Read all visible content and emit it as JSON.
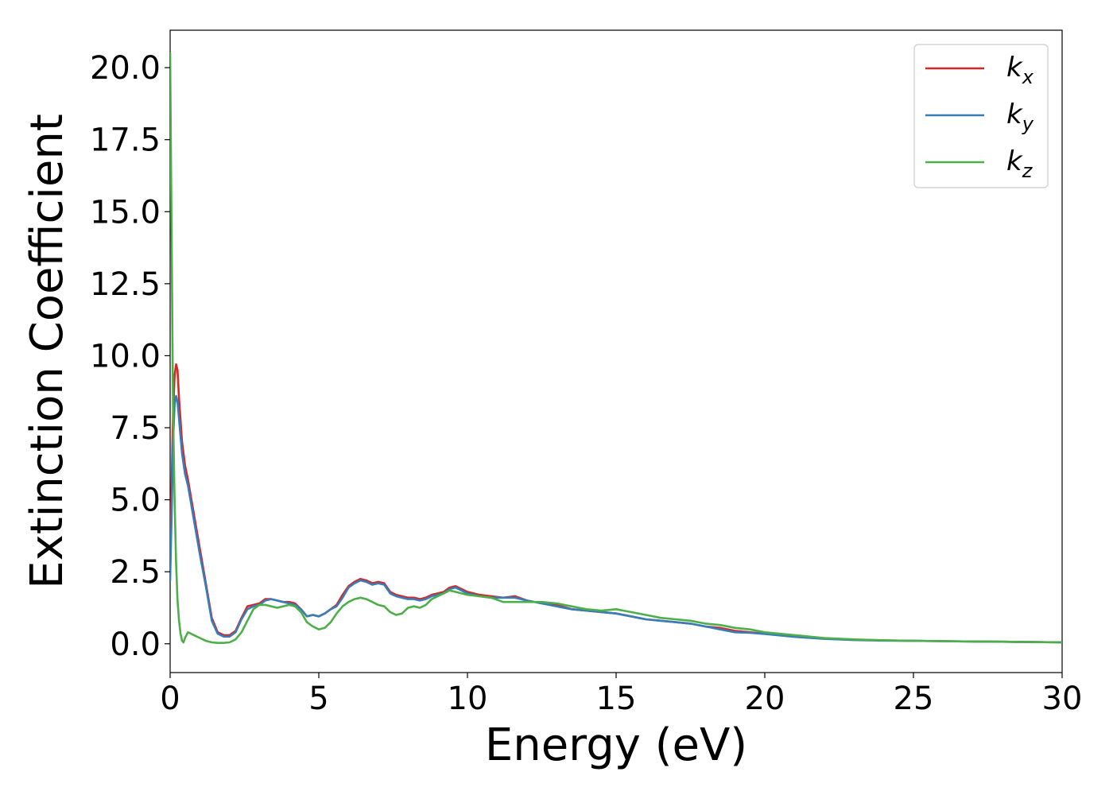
{
  "chart_data": {
    "type": "line",
    "xlabel": "Energy (eV)",
    "ylabel": "Extinction Coefficient",
    "xlim": [
      0,
      30
    ],
    "ylim": [
      -1.0,
      21.3
    ],
    "xticks": [
      0,
      5,
      10,
      15,
      20,
      25,
      30
    ],
    "xtick_labels": [
      "0",
      "5",
      "10",
      "15",
      "20",
      "25",
      "30"
    ],
    "yticks": [
      0.0,
      2.5,
      5.0,
      7.5,
      10.0,
      12.5,
      15.0,
      17.5,
      20.0
    ],
    "ytick_labels": [
      "0.0",
      "2.5",
      "5.0",
      "7.5",
      "10.0",
      "12.5",
      "15.0",
      "17.5",
      "20.0"
    ],
    "grid": false,
    "legend_position": "top-right",
    "series": [
      {
        "name": "k",
        "subscript": "x",
        "color": "#d62728",
        "x": [
          0,
          0.05,
          0.1,
          0.15,
          0.2,
          0.25,
          0.3,
          0.4,
          0.5,
          0.6,
          0.8,
          1.0,
          1.2,
          1.4,
          1.6,
          1.8,
          2.0,
          2.2,
          2.4,
          2.6,
          2.8,
          3.0,
          3.2,
          3.4,
          3.6,
          3.8,
          4.0,
          4.2,
          4.4,
          4.6,
          4.8,
          5.0,
          5.2,
          5.4,
          5.6,
          5.8,
          6.0,
          6.2,
          6.4,
          6.6,
          6.8,
          7.0,
          7.2,
          7.4,
          7.6,
          7.8,
          8.0,
          8.2,
          8.4,
          8.6,
          8.8,
          9.0,
          9.2,
          9.4,
          9.6,
          9.8,
          10.0,
          10.4,
          10.8,
          11.2,
          11.6,
          12.0,
          12.5,
          13.0,
          13.5,
          14.0,
          14.5,
          15.0,
          15.5,
          16.0,
          16.5,
          17.0,
          17.5,
          18.0,
          18.5,
          19.0,
          19.5,
          20.0,
          21.0,
          22.0,
          23.0,
          24.0,
          25.0,
          26.0,
          27.0,
          28.0,
          29.0,
          30.0
        ],
        "values": [
          2.5,
          5.5,
          8.0,
          9.3,
          9.7,
          9.5,
          8.5,
          7.0,
          6.2,
          5.7,
          4.5,
          3.3,
          2.1,
          0.9,
          0.4,
          0.3,
          0.3,
          0.45,
          0.9,
          1.3,
          1.35,
          1.4,
          1.55,
          1.55,
          1.5,
          1.45,
          1.45,
          1.4,
          1.2,
          0.95,
          1.0,
          0.95,
          1.05,
          1.2,
          1.35,
          1.7,
          2.0,
          2.15,
          2.25,
          2.2,
          2.1,
          2.15,
          2.1,
          1.8,
          1.7,
          1.65,
          1.6,
          1.6,
          1.55,
          1.6,
          1.7,
          1.75,
          1.8,
          1.95,
          2.0,
          1.9,
          1.8,
          1.7,
          1.65,
          1.6,
          1.65,
          1.5,
          1.4,
          1.35,
          1.2,
          1.15,
          1.1,
          1.05,
          0.95,
          0.85,
          0.8,
          0.75,
          0.7,
          0.6,
          0.55,
          0.45,
          0.4,
          0.35,
          0.25,
          0.18,
          0.14,
          0.12,
          0.1,
          0.09,
          0.08,
          0.07,
          0.06,
          0.05
        ]
      },
      {
        "name": "k",
        "subscript": "y",
        "color": "#377eb8",
        "x": [
          0,
          0.05,
          0.1,
          0.15,
          0.2,
          0.25,
          0.3,
          0.4,
          0.5,
          0.6,
          0.8,
          1.0,
          1.2,
          1.4,
          1.6,
          1.8,
          2.0,
          2.2,
          2.4,
          2.6,
          2.8,
          3.0,
          3.2,
          3.4,
          3.6,
          3.8,
          4.0,
          4.2,
          4.4,
          4.6,
          4.8,
          5.0,
          5.2,
          5.4,
          5.6,
          5.8,
          6.0,
          6.2,
          6.4,
          6.6,
          6.8,
          7.0,
          7.2,
          7.4,
          7.6,
          7.8,
          8.0,
          8.2,
          8.4,
          8.6,
          8.8,
          9.0,
          9.2,
          9.4,
          9.6,
          9.8,
          10.0,
          10.4,
          10.8,
          11.2,
          11.6,
          12.0,
          12.5,
          13.0,
          13.5,
          14.0,
          14.5,
          15.0,
          15.5,
          16.0,
          16.5,
          17.0,
          17.5,
          18.0,
          18.5,
          19.0,
          19.5,
          20.0,
          21.0,
          22.0,
          23.0,
          24.0,
          25.0,
          26.0,
          27.0,
          28.0,
          29.0,
          30.0
        ],
        "values": [
          2.2,
          4.5,
          7.0,
          8.3,
          8.6,
          8.4,
          7.8,
          6.6,
          5.9,
          5.5,
          4.3,
          3.1,
          2.0,
          0.8,
          0.35,
          0.25,
          0.25,
          0.4,
          0.85,
          1.2,
          1.3,
          1.35,
          1.5,
          1.55,
          1.5,
          1.45,
          1.4,
          1.35,
          1.2,
          0.95,
          1.0,
          0.95,
          1.05,
          1.2,
          1.3,
          1.6,
          1.95,
          2.1,
          2.2,
          2.15,
          2.05,
          2.1,
          2.05,
          1.75,
          1.65,
          1.6,
          1.55,
          1.55,
          1.5,
          1.55,
          1.65,
          1.7,
          1.75,
          1.9,
          1.95,
          1.85,
          1.75,
          1.65,
          1.6,
          1.6,
          1.6,
          1.5,
          1.4,
          1.3,
          1.2,
          1.15,
          1.1,
          1.05,
          0.95,
          0.85,
          0.8,
          0.75,
          0.7,
          0.6,
          0.5,
          0.4,
          0.38,
          0.34,
          0.24,
          0.17,
          0.13,
          0.11,
          0.1,
          0.09,
          0.08,
          0.07,
          0.06,
          0.05
        ]
      },
      {
        "name": "k",
        "subscript": "z",
        "color": "#4daf4a",
        "x": [
          0,
          0.05,
          0.1,
          0.15,
          0.2,
          0.25,
          0.3,
          0.35,
          0.4,
          0.45,
          0.5,
          0.6,
          0.7,
          0.8,
          1.0,
          1.2,
          1.4,
          1.6,
          1.8,
          2.0,
          2.2,
          2.4,
          2.6,
          2.8,
          3.0,
          3.2,
          3.4,
          3.6,
          3.8,
          4.0,
          4.2,
          4.4,
          4.6,
          4.8,
          5.0,
          5.2,
          5.4,
          5.6,
          5.8,
          6.0,
          6.2,
          6.4,
          6.6,
          6.8,
          7.0,
          7.2,
          7.4,
          7.6,
          7.8,
          8.0,
          8.2,
          8.4,
          8.6,
          8.8,
          9.0,
          9.2,
          9.4,
          9.6,
          9.8,
          10.0,
          10.4,
          10.8,
          11.2,
          11.6,
          12.0,
          12.5,
          13.0,
          13.5,
          14.0,
          14.5,
          15.0,
          15.5,
          16.0,
          16.5,
          17.0,
          17.5,
          18.0,
          18.5,
          19.0,
          19.5,
          20.0,
          21.0,
          22.0,
          23.0,
          24.0,
          25.0,
          26.0,
          27.0,
          28.0,
          29.0,
          30.0
        ],
        "values": [
          20.5,
          14.0,
          8.0,
          5.0,
          2.8,
          1.5,
          0.8,
          0.35,
          0.1,
          0.05,
          0.2,
          0.4,
          0.35,
          0.3,
          0.2,
          0.1,
          0.05,
          0.03,
          0.03,
          0.05,
          0.15,
          0.4,
          0.8,
          1.2,
          1.35,
          1.35,
          1.3,
          1.25,
          1.3,
          1.35,
          1.3,
          1.1,
          0.75,
          0.6,
          0.5,
          0.55,
          0.75,
          1.05,
          1.3,
          1.45,
          1.55,
          1.6,
          1.55,
          1.45,
          1.35,
          1.3,
          1.1,
          1.0,
          1.05,
          1.25,
          1.3,
          1.25,
          1.35,
          1.55,
          1.65,
          1.75,
          1.85,
          1.8,
          1.75,
          1.7,
          1.65,
          1.6,
          1.45,
          1.45,
          1.45,
          1.45,
          1.4,
          1.3,
          1.2,
          1.15,
          1.2,
          1.1,
          1.0,
          0.9,
          0.85,
          0.8,
          0.7,
          0.65,
          0.55,
          0.5,
          0.4,
          0.3,
          0.2,
          0.15,
          0.12,
          0.1,
          0.09,
          0.08,
          0.07,
          0.06,
          0.05
        ]
      }
    ]
  }
}
